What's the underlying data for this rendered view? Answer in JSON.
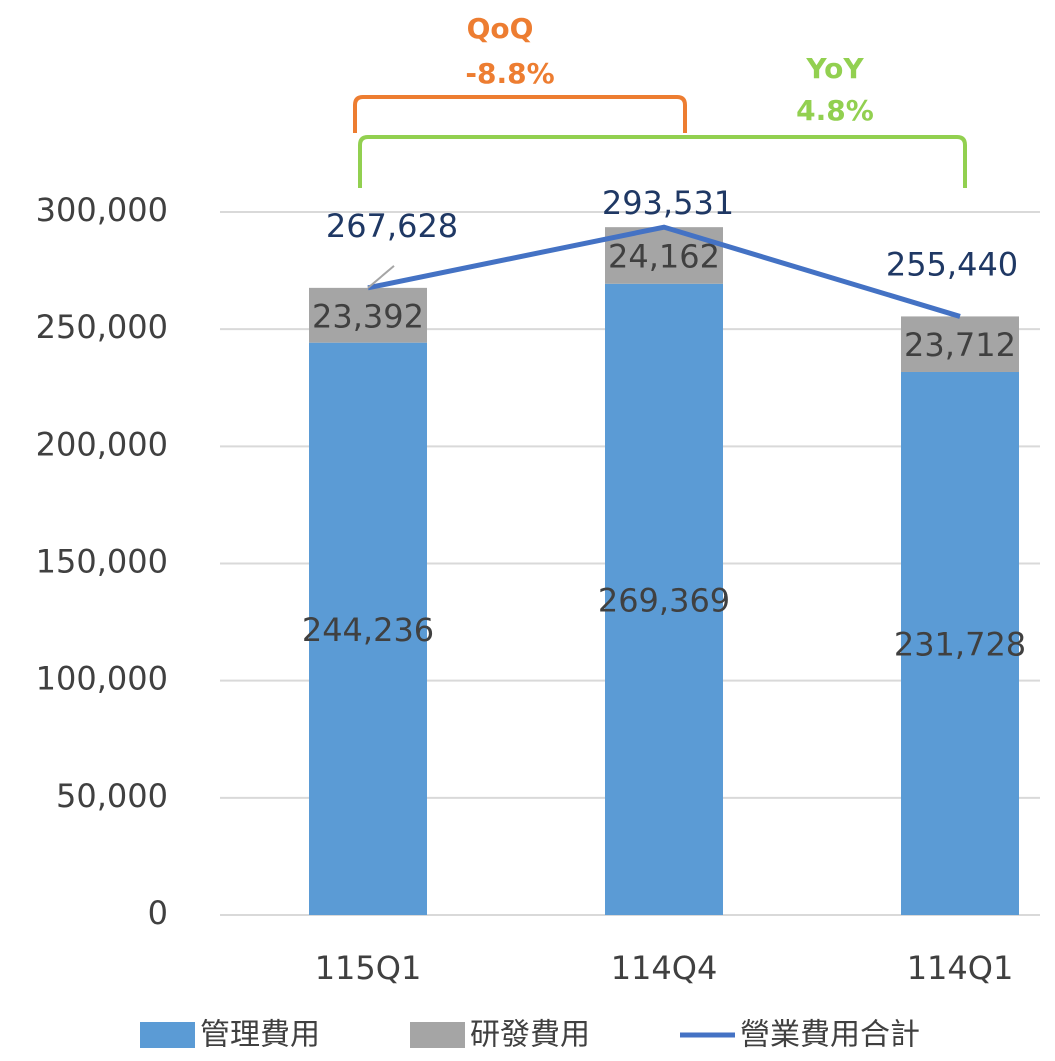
{
  "chart_data": {
    "type": "bar",
    "categories": [
      "115Q1",
      "114Q4",
      "114Q1"
    ],
    "series": [
      {
        "name": "管理費用",
        "color": "#5b9bd5",
        "values": [
          244236,
          269369,
          231728
        ],
        "value_labels": [
          "244,236",
          "269,369",
          "231,728"
        ]
      },
      {
        "name": "研發費用",
        "color": "#a5a5a5",
        "values": [
          23392,
          24162,
          23712
        ],
        "value_labels": [
          "23,392",
          "24,162",
          "23,712"
        ]
      },
      {
        "name": "營業費用合計",
        "type": "line",
        "color": "#4472c4",
        "values": [
          267628,
          293531,
          255440
        ],
        "value_labels": [
          "267,628",
          "293,531",
          "255,440"
        ]
      }
    ],
    "stacked": true,
    "ylim": [
      0,
      300000
    ],
    "yticks": [
      0,
      {
        "value": 50000,
        "label": "50,000"
      },
      {
        "value": 100000,
        "label": "100,000"
      },
      {
        "value": 150000,
        "label": "150,000"
      },
      {
        "value": 200000,
        "label": "200,000"
      },
      {
        "value": 250000,
        "label": "250,000"
      },
      {
        "value": 300000,
        "label": "300,000"
      }
    ],
    "grid": true,
    "legend": "bottom",
    "annotations": [
      {
        "title": "QoQ",
        "text": "-8.8%",
        "color": "#ed7d31"
      },
      {
        "title": "YoY",
        "text": "4.8%",
        "color": "#92d050"
      }
    ]
  }
}
